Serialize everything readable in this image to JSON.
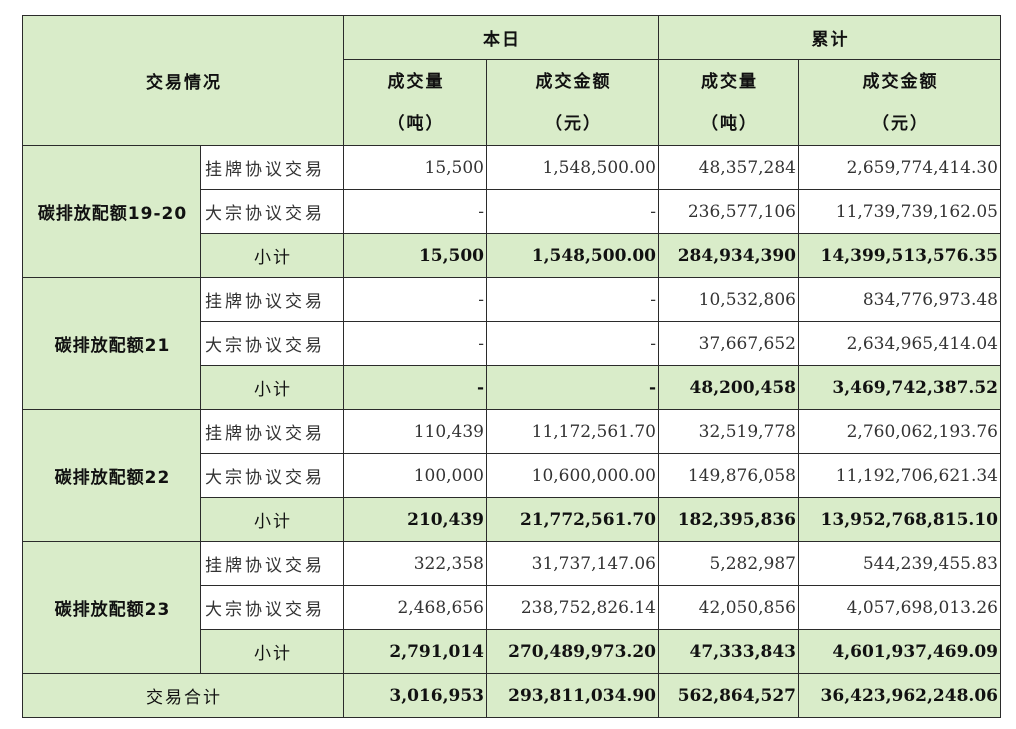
{
  "header": {
    "trade_situation": "交易情况",
    "today": "本日",
    "cumulative": "累计",
    "volume": "成交量",
    "volume_unit": "（吨）",
    "amount": "成交金额",
    "amount_unit": "（元）"
  },
  "groups": [
    {
      "name": "碳排放配额19-20",
      "rows": [
        {
          "type": "挂牌协议交易",
          "today_vol": "15,500",
          "today_amt": "1,548,500.00",
          "cum_vol": "48,357,284",
          "cum_amt": "2,659,774,414.30"
        },
        {
          "type": "大宗协议交易",
          "today_vol": "-",
          "today_amt": "-",
          "cum_vol": "236,577,106",
          "cum_amt": "11,739,739,162.05"
        }
      ],
      "subtotal": {
        "label": "小计",
        "today_vol": "15,500",
        "today_amt": "1,548,500.00",
        "cum_vol": "284,934,390",
        "cum_amt": "14,399,513,576.35"
      }
    },
    {
      "name": "碳排放配额21",
      "rows": [
        {
          "type": "挂牌协议交易",
          "today_vol": "-",
          "today_amt": "-",
          "cum_vol": "10,532,806",
          "cum_amt": "834,776,973.48"
        },
        {
          "type": "大宗协议交易",
          "today_vol": "-",
          "today_amt": "-",
          "cum_vol": "37,667,652",
          "cum_amt": "2,634,965,414.04"
        }
      ],
      "subtotal": {
        "label": "小计",
        "today_vol": "-",
        "today_amt": "-",
        "cum_vol": "48,200,458",
        "cum_amt": "3,469,742,387.52"
      }
    },
    {
      "name": "碳排放配额22",
      "rows": [
        {
          "type": "挂牌协议交易",
          "today_vol": "110,439",
          "today_amt": "11,172,561.70",
          "cum_vol": "32,519,778",
          "cum_amt": "2,760,062,193.76"
        },
        {
          "type": "大宗协议交易",
          "today_vol": "100,000",
          "today_amt": "10,600,000.00",
          "cum_vol": "149,876,058",
          "cum_amt": "11,192,706,621.34"
        }
      ],
      "subtotal": {
        "label": "小计",
        "today_vol": "210,439",
        "today_amt": "21,772,561.70",
        "cum_vol": "182,395,836",
        "cum_amt": "13,952,768,815.10"
      }
    },
    {
      "name": "碳排放配额23",
      "rows": [
        {
          "type": "挂牌协议交易",
          "today_vol": "322,358",
          "today_amt": "31,737,147.06",
          "cum_vol": "5,282,987",
          "cum_amt": "544,239,455.83"
        },
        {
          "type": "大宗协议交易",
          "today_vol": "2,468,656",
          "today_amt": "238,752,826.14",
          "cum_vol": "42,050,856",
          "cum_amt": "4,057,698,013.26"
        }
      ],
      "subtotal": {
        "label": "小计",
        "today_vol": "2,791,014",
        "today_amt": "270,489,973.20",
        "cum_vol": "47,333,843",
        "cum_amt": "4,601,937,469.09"
      }
    }
  ],
  "total": {
    "label": "交易合计",
    "today_vol": "3,016,953",
    "today_amt": "293,811,034.90",
    "cum_vol": "562,864,527",
    "cum_amt": "36,423,962,248.06"
  }
}
